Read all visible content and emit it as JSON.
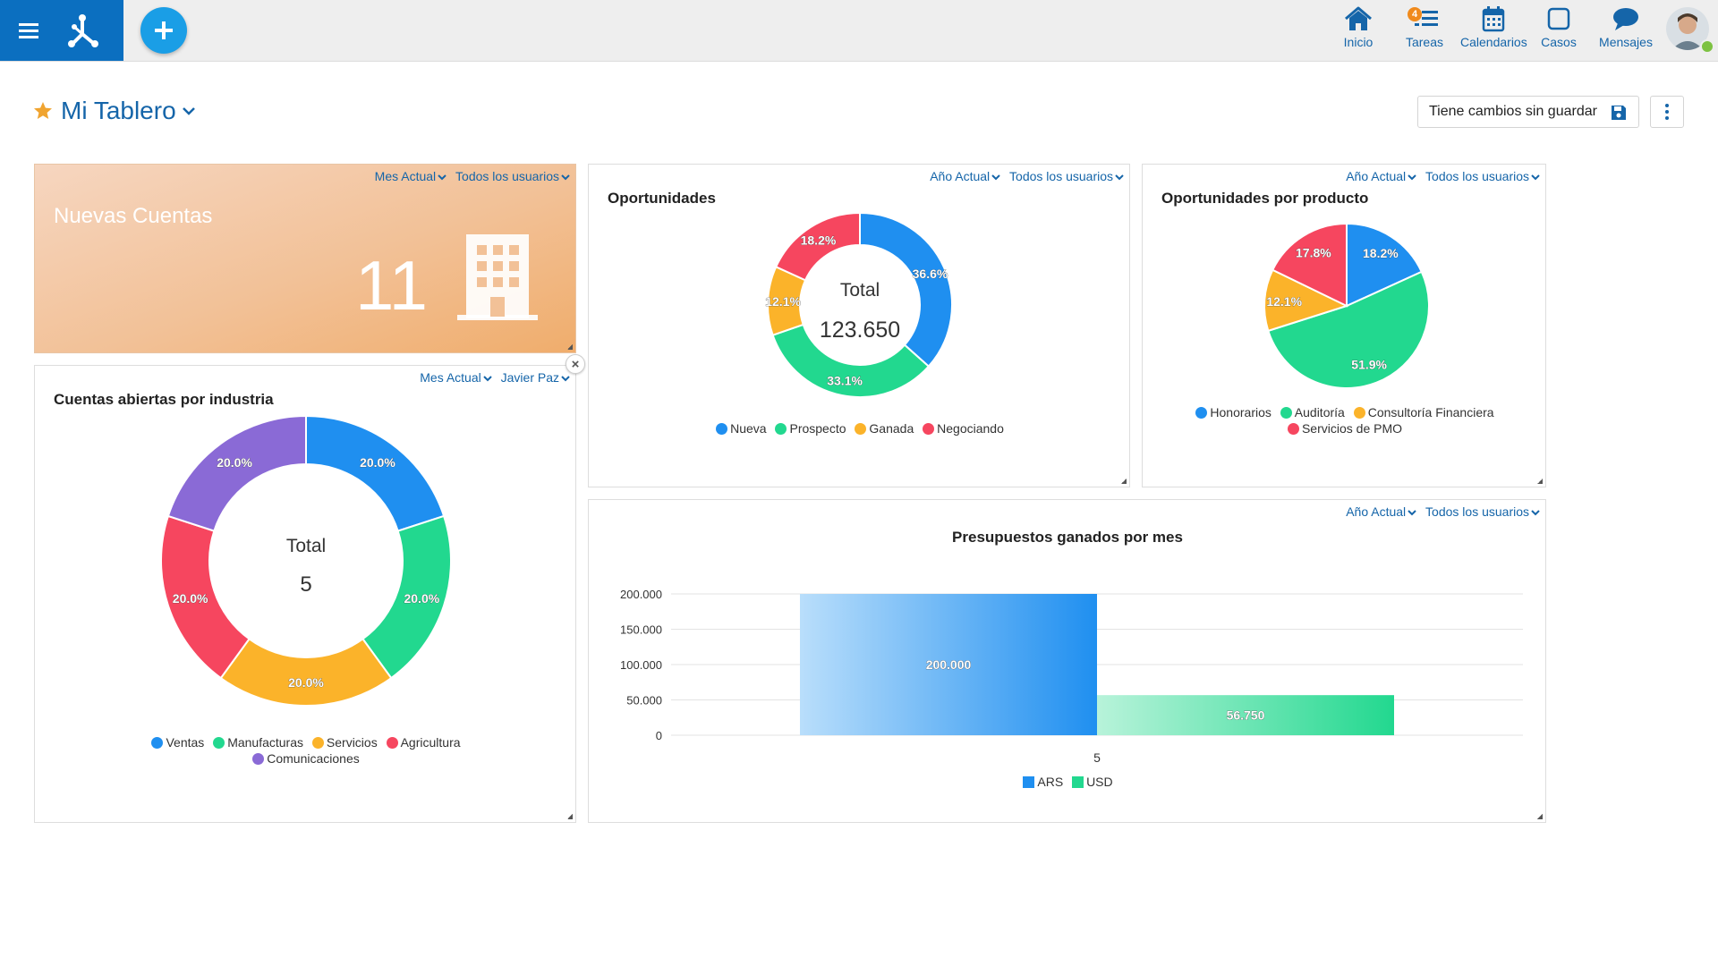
{
  "nav": {
    "items": [
      {
        "label": "Inicio",
        "icon": "home-icon"
      },
      {
        "label": "Tareas",
        "icon": "tasks-icon",
        "badge": "4"
      },
      {
        "label": "Calendarios",
        "icon": "calendar-icon"
      },
      {
        "label": "Casos",
        "icon": "cases-icon"
      },
      {
        "label": "Mensajes",
        "icon": "messages-icon"
      }
    ]
  },
  "header": {
    "title": "Mi Tablero",
    "unsaved_label": "Tiene cambios sin guardar"
  },
  "colors": {
    "brand": "#0b6fc0",
    "link": "#1565a9",
    "blue": "#1f8ff0",
    "green": "#22d88f",
    "orange": "#fbb32a",
    "red": "#f6465f",
    "purple": "#8a6ad6"
  },
  "widgets": {
    "nuevas_cuentas": {
      "title": "Nuevas Cuentas",
      "value": "11",
      "filter_period": "Mes Actual",
      "filter_users": "Todos los usuarios",
      "icon": "building-icon"
    },
    "oportunidades": {
      "title": "Oportunidades",
      "filter_period": "Año Actual",
      "filter_users": "Todos los usuarios",
      "center_label": "Total",
      "center_value": "123.650"
    },
    "oportunidades_producto": {
      "title": "Oportunidades por producto",
      "filter_period": "Año Actual",
      "filter_users": "Todos los usuarios"
    },
    "cuentas_industria": {
      "title": "Cuentas abiertas por industria",
      "filter_period": "Mes Actual",
      "filter_users": "Javier Paz",
      "center_label": "Total",
      "center_value": "5"
    },
    "presupuestos": {
      "title": "Presupuestos ganados por mes",
      "filter_period": "Año Actual",
      "filter_users": "Todos los usuarios"
    }
  },
  "chart_data": [
    {
      "id": "oportunidades",
      "type": "pie",
      "donut": true,
      "categories": [
        "Nueva",
        "Prospecto",
        "Ganada",
        "Negociando"
      ],
      "values": [
        36.6,
        33.1,
        12.1,
        18.2
      ],
      "labels": [
        "36.6%",
        "33.1%",
        "12.1%",
        "18.2%"
      ],
      "colors": [
        "#1f8ff0",
        "#22d88f",
        "#fbb32a",
        "#f6465f"
      ],
      "title": "Oportunidades",
      "legend": "bottom"
    },
    {
      "id": "oportunidades_producto",
      "type": "pie",
      "donut": false,
      "categories": [
        "Honorarios",
        "Auditoría",
        "Consultoría Financiera",
        "Servicios de PMO"
      ],
      "values": [
        18.2,
        51.9,
        12.1,
        17.8
      ],
      "labels": [
        "18.2%",
        "51.9%",
        "12.1%",
        "17.8%"
      ],
      "colors": [
        "#1f8ff0",
        "#22d88f",
        "#fbb32a",
        "#f6465f"
      ],
      "title": "Oportunidades por producto",
      "legend": "bottom"
    },
    {
      "id": "cuentas_industria",
      "type": "pie",
      "donut": true,
      "categories": [
        "Ventas",
        "Manufacturas",
        "Servicios",
        "Agricultura",
        "Comunicaciones"
      ],
      "values": [
        20.0,
        20.0,
        20.0,
        20.0,
        20.0
      ],
      "labels": [
        "20.0%",
        "20.0%",
        "20.0%",
        "20.0%",
        "20.0%"
      ],
      "colors": [
        "#1f8ff0",
        "#22d88f",
        "#fbb32a",
        "#f6465f",
        "#8a6ad6"
      ],
      "title": "Cuentas abiertas por industria",
      "legend": "bottom"
    },
    {
      "id": "presupuestos",
      "type": "bar",
      "title": "Presupuestos ganados por mes",
      "categories": [
        "5"
      ],
      "series": [
        {
          "name": "ARS",
          "values": [
            200000
          ],
          "label": "200.000",
          "color": "#1f8ff0"
        },
        {
          "name": "USD",
          "values": [
            56750
          ],
          "label": "56.750",
          "color": "#22d88f"
        }
      ],
      "yticks": [
        "200.000",
        "150.000",
        "100.000",
        "50.000",
        "0"
      ],
      "ytick_values": [
        200000,
        150000,
        100000,
        50000,
        0
      ],
      "ylim": [
        0,
        200000
      ],
      "grid": true,
      "legend": "bottom"
    }
  ]
}
